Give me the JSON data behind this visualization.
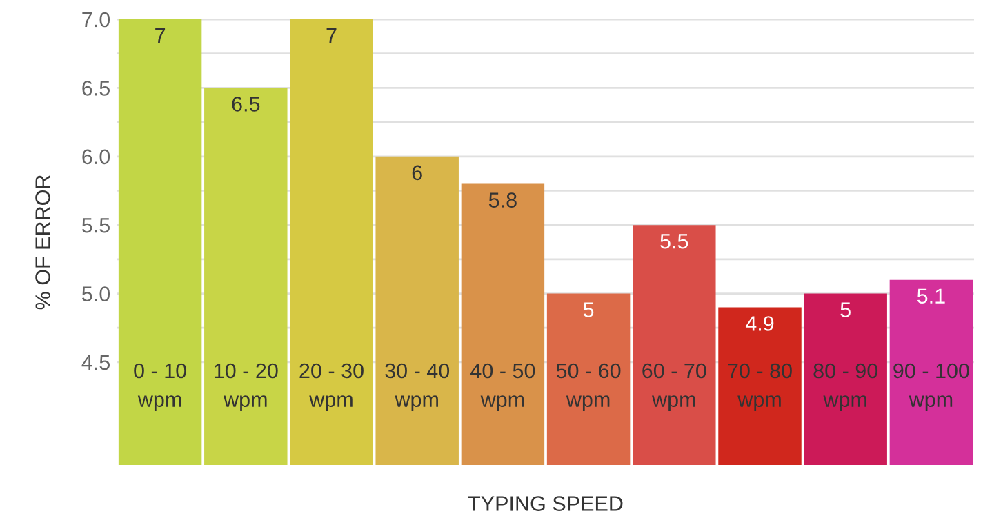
{
  "chart_data": {
    "type": "bar",
    "xlabel": "TYPING SPEED",
    "ylabel": "% OF ERROR",
    "categories": [
      "0 - 10\nwpm",
      "10 - 20\nwpm",
      "20 - 30\nwpm",
      "30 - 40\nwpm",
      "40 - 50\nwpm",
      "50 - 60\nwpm",
      "60 - 70\nwpm",
      "70 - 80\nwpm",
      "80 - 90\nwpm",
      "90 - 100\nwpm"
    ],
    "values": [
      7,
      6.5,
      7,
      6,
      5.8,
      5,
      5.5,
      4.9,
      5,
      5.1
    ],
    "colors": [
      "#c2d646",
      "#c8d547",
      "#d6c943",
      "#d9b64a",
      "#d9924a",
      "#dc6a48",
      "#d94e48",
      "#d0271d",
      "#cc1a58",
      "#d4309a"
    ],
    "data_labels": true,
    "ylim": [
      3.75,
      7.0
    ],
    "yticks": [
      {
        "value": 4.5,
        "label": "4.5"
      },
      {
        "value": 4.75,
        "label": null
      },
      {
        "value": 5.0,
        "label": "5.0"
      },
      {
        "value": 5.25,
        "label": null
      },
      {
        "value": 5.5,
        "label": "5.5"
      },
      {
        "value": 5.75,
        "label": null
      },
      {
        "value": 6.0,
        "label": "6.0"
      },
      {
        "value": 6.25,
        "label": null
      },
      {
        "value": 6.5,
        "label": "6.5"
      },
      {
        "value": 6.75,
        "label": null
      },
      {
        "value": 7.0,
        "label": "7.0"
      }
    ],
    "grid": "y"
  }
}
